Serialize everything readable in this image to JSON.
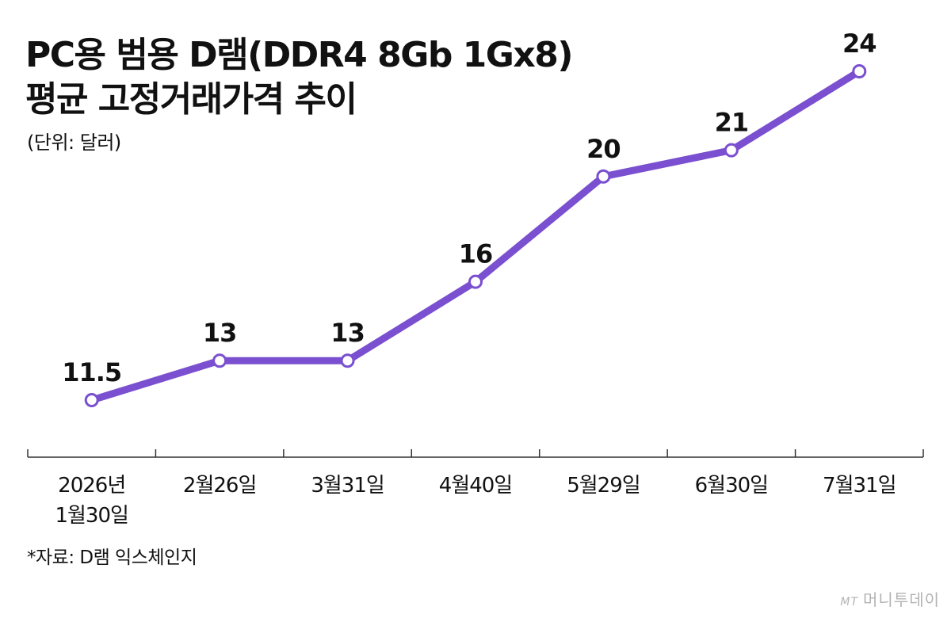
{
  "title_line1": "PC용 범용 D램(DDR4 8Gb 1Gx8)",
  "title_line2": "평균 고정거래가격 추이",
  "unit": "(단위: 달러)",
  "source": "*자료: D램 익스체인지",
  "watermark": {
    "brand": "MT",
    "name": "머니투데이"
  },
  "colors": {
    "line": "#7a4fd0",
    "marker_fill": "#ffffff",
    "axis": "#333333"
  },
  "chart_data": {
    "type": "line",
    "categories": [
      [
        "2026년",
        "1월30일"
      ],
      [
        "2월26일"
      ],
      [
        "3월31일"
      ],
      [
        "4월40일"
      ],
      [
        "5월29일"
      ],
      [
        "6월30일"
      ],
      [
        "7월31일"
      ]
    ],
    "values": [
      11.5,
      13,
      13,
      16,
      20,
      21,
      24
    ],
    "value_labels": [
      "11.5",
      "13",
      "13",
      "16",
      "20",
      "21",
      "24"
    ],
    "grid": false,
    "legend": "none"
  }
}
